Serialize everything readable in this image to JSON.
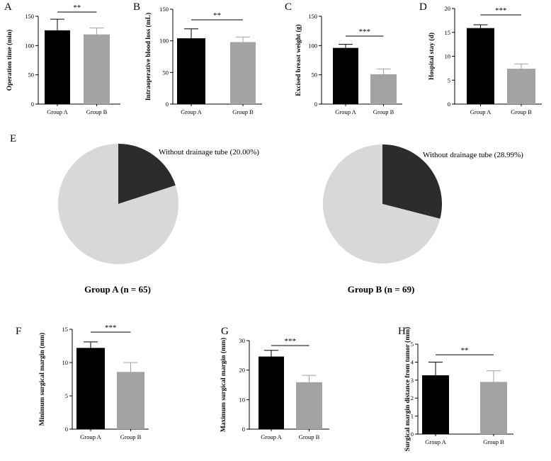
{
  "colors": {
    "group_a": "#000000",
    "group_b": "#a3a3a5",
    "pie_with": "#d7d8d7",
    "pie_without": "#2c2c2c",
    "axis": "#000000"
  },
  "chart_data": [
    {
      "panel": "A",
      "type": "bar",
      "categories": [
        "Group A",
        "Group B"
      ],
      "values": [
        126,
        119
      ],
      "errors": [
        19,
        11
      ],
      "ylabel": "Operation time (min)",
      "ylim": [
        0,
        150
      ],
      "yticks": [
        0,
        50,
        100,
        150
      ],
      "significance": "**"
    },
    {
      "panel": "B",
      "type": "bar",
      "categories": [
        "Group A",
        "Group B"
      ],
      "values": [
        104,
        98
      ],
      "errors": [
        15,
        8
      ],
      "ylabel": "Intraoperative blood loss (mL)",
      "ylim": [
        0,
        150
      ],
      "yticks": [
        0,
        50,
        100,
        150
      ],
      "significance": "**"
    },
    {
      "panel": "C",
      "type": "bar",
      "categories": [
        "Group A",
        "Group B"
      ],
      "values": [
        96,
        51
      ],
      "errors": [
        6,
        9
      ],
      "ylabel": "Excised breast weight (g)",
      "ylim": [
        0,
        150
      ],
      "yticks": [
        0,
        50,
        100,
        150
      ],
      "significance": "***"
    },
    {
      "panel": "D",
      "type": "bar",
      "categories": [
        "Group A",
        "Group B"
      ],
      "values": [
        15.9,
        7.4
      ],
      "errors": [
        0.7,
        1.0
      ],
      "ylabel": "Hospital stay (d)",
      "ylim": [
        0,
        20
      ],
      "yticks": [
        0,
        5,
        10,
        15,
        20
      ],
      "significance": "***"
    },
    {
      "panel": "E",
      "type": "pie",
      "title": "Group A (n = 65)",
      "slices": [
        {
          "label": "Without drainage tube (20.00%)",
          "value": 20.0
        },
        {
          "label": "",
          "value": 80.0
        }
      ]
    },
    {
      "panel": "E",
      "type": "pie",
      "title": "Group B (n = 69)",
      "slices": [
        {
          "label": "Without drainage tube (28.99%)",
          "value": 28.99
        },
        {
          "label": "",
          "value": 71.01
        }
      ]
    },
    {
      "panel": "F",
      "type": "bar",
      "categories": [
        "Group A",
        "Group B"
      ],
      "values": [
        12.2,
        8.6
      ],
      "errors": [
        0.9,
        1.4
      ],
      "ylabel": "Minimum surgical margin (mm)",
      "ylim": [
        0,
        15
      ],
      "yticks": [
        0,
        5,
        10,
        15
      ],
      "significance": "***"
    },
    {
      "panel": "G",
      "type": "bar",
      "categories": [
        "Group A",
        "Group B"
      ],
      "values": [
        24.6,
        15.9
      ],
      "errors": [
        2.1,
        2.3
      ],
      "ylabel": "Maximum surgical margin (mm)",
      "ylim": [
        0,
        30
      ],
      "yticks": [
        0,
        10,
        20,
        30
      ],
      "significance": "***"
    },
    {
      "panel": "H",
      "type": "bar",
      "categories": [
        "Group A",
        "Group B"
      ],
      "values": [
        3.27,
        2.9
      ],
      "errors": [
        0.73,
        0.62
      ],
      "ylabel": "Surgical margin distance from tumor (mm)",
      "ylim": [
        0,
        5
      ],
      "yticks": [
        0,
        1,
        2,
        3,
        4,
        5
      ],
      "significance": "**"
    }
  ]
}
